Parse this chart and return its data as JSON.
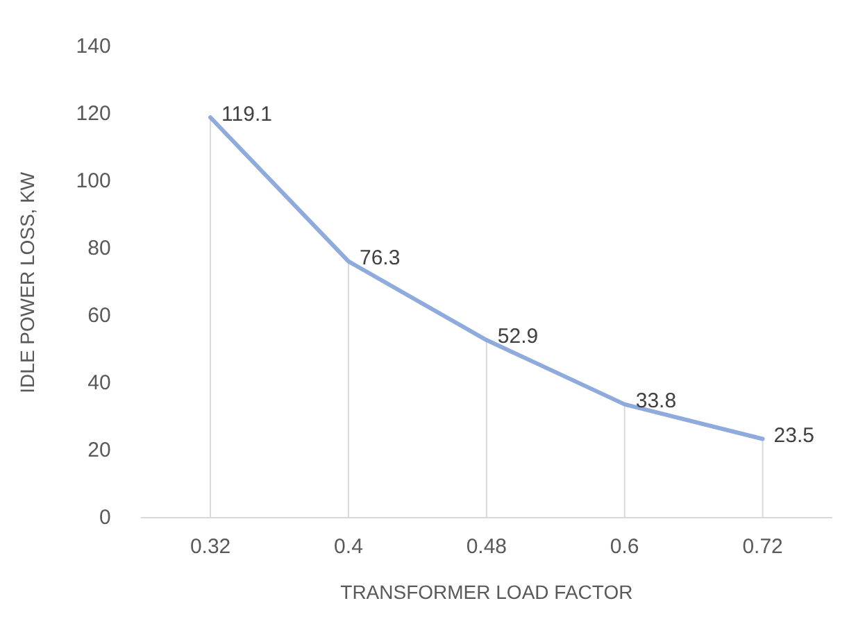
{
  "chart_data": {
    "type": "line",
    "xlabel": "TRANSFORMER LOAD FACTOR",
    "ylabel": "IDLE POWER LOSS, KW",
    "categories": [
      "0.32",
      "0.4",
      "0.48",
      "0.6",
      "0.72"
    ],
    "series": [
      {
        "color": "#8faadc",
        "values": [
          119.1,
          76.3,
          52.9,
          33.8,
          23.5
        ]
      }
    ],
    "ylim": [
      0,
      140
    ],
    "yticks": [
      0,
      20,
      40,
      60,
      80,
      100,
      120,
      140
    ],
    "grid": "x",
    "legend": false,
    "marker": "none",
    "line_style": "solid",
    "data_labels": true
  }
}
